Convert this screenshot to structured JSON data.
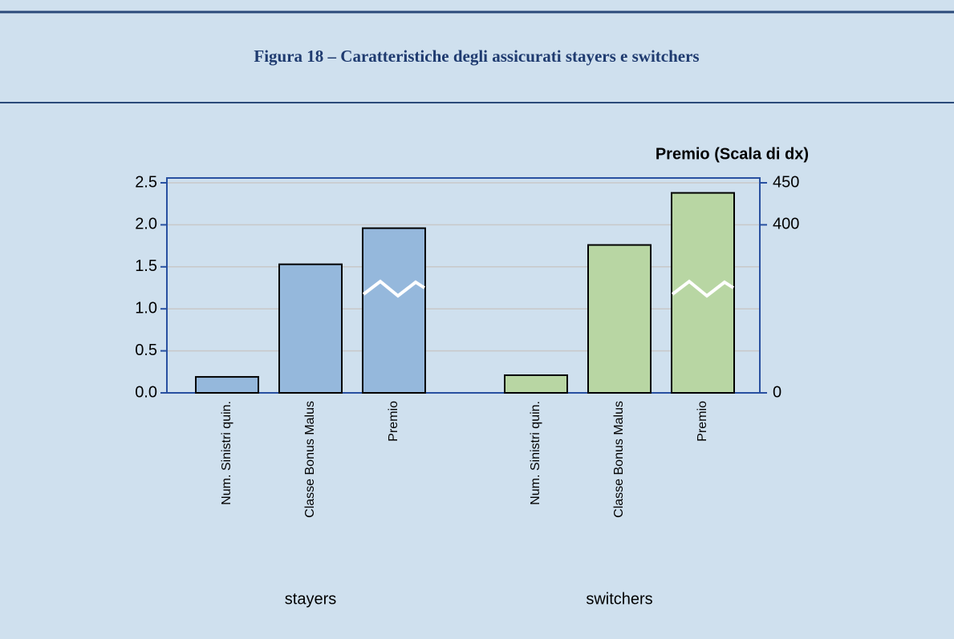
{
  "caption": "Figura 18 – Caratteristiche degli assicurati stayers e switchers",
  "chart_data": {
    "type": "bar",
    "y2label": "Premio (Scala di dx)",
    "categories": [
      "Num. Sinistri quin.",
      "Classe Bonus Malus",
      "Premio"
    ],
    "axes": [
      "y",
      "y",
      "y2"
    ],
    "series": [
      {
        "name": "stayers",
        "color": "#95b8dc",
        "values": [
          0.19,
          1.53,
          392
        ]
      },
      {
        "name": "switchers",
        "color": "#b8d6a3",
        "values": [
          0.21,
          1.76,
          438
        ]
      }
    ],
    "ylim": [
      0,
      2.5
    ],
    "yticks": [
      {
        "value": 0,
        "label": "0.0"
      },
      0.5,
      {
        "value": 1,
        "label": "1.0"
      },
      1.5,
      {
        "value": 2,
        "label": "2.0"
      },
      2.5
    ],
    "y2lim": [
      0,
      450
    ],
    "y2ticks": [
      0,
      400,
      450
    ],
    "y2_break": true,
    "grid": true
  }
}
